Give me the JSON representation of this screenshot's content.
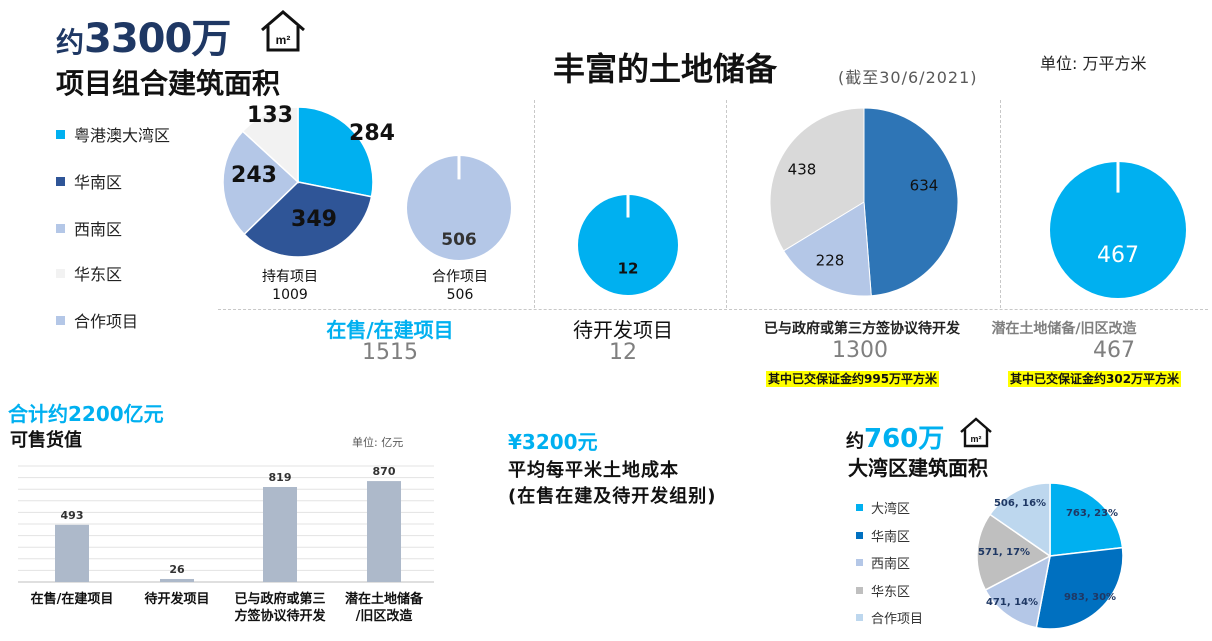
{
  "top_left": {
    "prefix": "约",
    "big_number": "3300万",
    "unit_icon": "m²",
    "subtitle": "项目组合建筑面积"
  },
  "legend": [
    {
      "label": "粤港澳大湾区",
      "color": "#00b0f0"
    },
    {
      "label": "华南区",
      "color": "#2f5597"
    },
    {
      "label": "西南区",
      "color": "#b4c7e7"
    },
    {
      "label": "华东区",
      "color": "#f2f2f2"
    },
    {
      "label": "合作项目",
      "color": "#b4c7e7"
    }
  ],
  "land_bank": {
    "title": "丰富的土地储备",
    "date_note": "(截至30/6/2021)",
    "unit": "单位:  万平方米"
  },
  "categories": {
    "selling": {
      "name": "在售/在建项目",
      "total": "1515"
    },
    "pending": {
      "name": "待开发项目",
      "total": "12"
    },
    "gov": {
      "name": "已与政府或第三方签协议待开发",
      "total": "1300",
      "note": "其中已交保证金约995万平方米"
    },
    "potential": {
      "name": "潜在土地储备/旧区改造",
      "total": "467",
      "note": "其中已交保证金约302万平方米"
    }
  },
  "held": {
    "label": "持有项目",
    "total": "1009"
  },
  "coop": {
    "label": "合作项目",
    "total": "506"
  },
  "saleable": {
    "headline": "合计约2200亿元",
    "title": "可售货值",
    "unit": "单位:  亿元"
  },
  "land_cost": {
    "headline": "¥3200元",
    "line1": "平均每平米土地成本",
    "line2": "(在售在建及待开发组别)"
  },
  "bay": {
    "prefix": "约",
    "big_number": "760万",
    "unit_icon": "m²",
    "subtitle": "大湾区建筑面积"
  },
  "legend2": [
    {
      "label": "大湾区",
      "color": "#00b0f0"
    },
    {
      "label": "华南区",
      "color": "#0070c0"
    },
    {
      "label": "西南区",
      "color": "#b4c7e7"
    },
    {
      "label": "华东区",
      "color": "#bfbfbf"
    },
    {
      "label": "合作项目",
      "color": "#bdd7ee"
    }
  ],
  "chart_data": [
    {
      "type": "pie",
      "title": "持有项目",
      "slices": [
        {
          "label": "粤港澳大湾区",
          "value": 284,
          "color": "#00b0f0"
        },
        {
          "label": "华南区",
          "value": 349,
          "color": "#2f5597"
        },
        {
          "label": "西南区",
          "value": 243,
          "color": "#b4c7e7"
        },
        {
          "label": "华东区",
          "value": 133,
          "color": "#f2f2f2"
        }
      ]
    },
    {
      "type": "pie",
      "title": "合作项目",
      "slices": [
        {
          "label": "合作项目",
          "value": 506,
          "color": "#b4c7e7"
        }
      ]
    },
    {
      "type": "pie",
      "title": "待开发项目",
      "slices": [
        {
          "label": "待开发项目",
          "value": 12,
          "color": "#00b0f0"
        }
      ]
    },
    {
      "type": "pie",
      "title": "已与政府或第三方签协议待开发",
      "slices": [
        {
          "label": "",
          "value": 634,
          "color": "#2e75b6"
        },
        {
          "label": "",
          "value": 228,
          "color": "#b4c7e7"
        },
        {
          "label": "",
          "value": 438,
          "color": "#d9d9d9"
        }
      ]
    },
    {
      "type": "pie",
      "title": "潜在土地储备/旧区改造",
      "slices": [
        {
          "label": "潜在土地储备/旧区改造",
          "value": 467,
          "color": "#00b0f0"
        }
      ]
    },
    {
      "type": "bar",
      "title": "可售货值",
      "categories": [
        "在售/在建项目",
        "待开发项目",
        "已与政府或第三方签协议待开发",
        "潜在土地储备/旧区改造"
      ],
      "category_lines": [
        [
          "在售/在建项目"
        ],
        [
          "待开发项目"
        ],
        [
          "已与政府或第三",
          "方签协议待开发"
        ],
        [
          "潜在土地储备",
          "/旧区改造"
        ]
      ],
      "values": [
        493,
        26,
        819,
        870
      ],
      "ylim": [
        0,
        1000
      ],
      "grid": true,
      "color": "#adb9ca"
    },
    {
      "type": "pie",
      "title": "大湾区建筑面积",
      "slices": [
        {
          "label": "763, 23%",
          "value": 763,
          "color": "#00b0f0"
        },
        {
          "label": "983, 30%",
          "value": 983,
          "color": "#0070c0"
        },
        {
          "label": "471, 14%",
          "value": 471,
          "color": "#b4c7e7"
        },
        {
          "label": "571, 17%",
          "value": 571,
          "color": "#bfbfbf"
        },
        {
          "label": "506, 16%",
          "value": 506,
          "color": "#bdd7ee"
        }
      ]
    }
  ]
}
